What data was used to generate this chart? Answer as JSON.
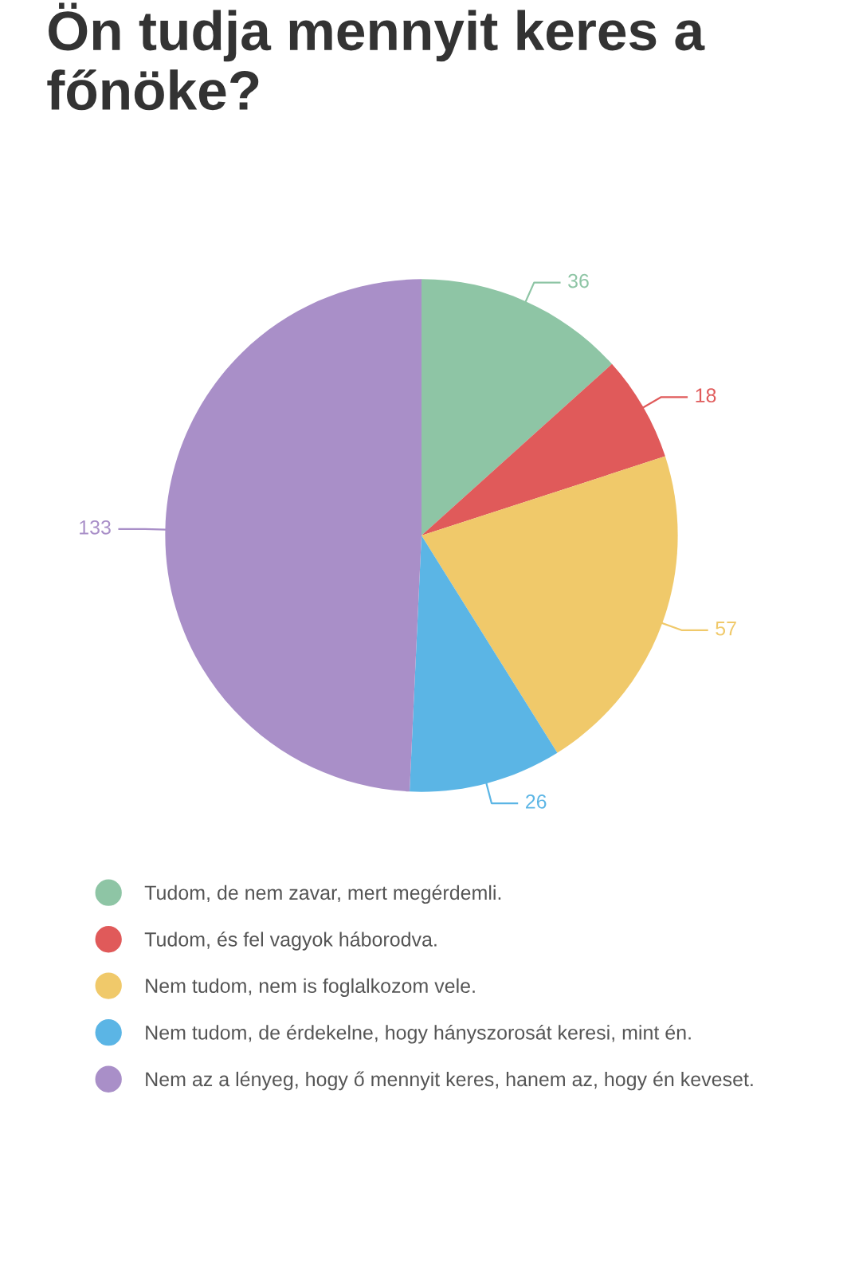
{
  "chart_data": {
    "type": "pie",
    "title": "Ön tudja mennyit keres a főnöke?",
    "categories": [
      "Tudom, de nem zavar, mert megérdemli.",
      "Tudom, és fel vagyok háborodva.",
      "Nem tudom, nem is foglalkozom vele.",
      "Nem tudom, de érdekelne, hogy hányszorosát keresi, mint én.",
      "Nem az a lényeg, hogy ő mennyit keres, hanem az, hogy én keveset."
    ],
    "values": [
      36,
      18,
      57,
      26,
      133
    ],
    "colors": [
      "#8ec5a5",
      "#e05a5a",
      "#f0c96a",
      "#5bb5e5",
      "#a98fc8"
    ],
    "data_labels": true,
    "legend": "bottom"
  }
}
